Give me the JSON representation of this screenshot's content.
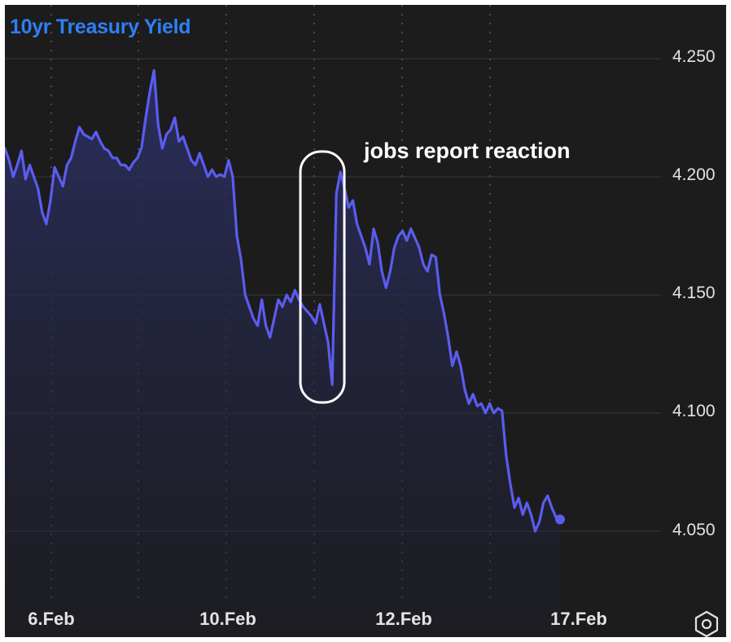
{
  "colors": {
    "background": "#1c1c1c",
    "line": "#5a5cf0",
    "title": "#2f7ff5",
    "grid": "#3a3a3a",
    "text": "#e3e3e3",
    "annotation": "#ffffff"
  },
  "settings": {
    "icon": "gear-hexagon-icon"
  },
  "chart_data": {
    "type": "area",
    "title": "10yr Treasury Yield",
    "xlabel": "",
    "ylabel": "",
    "x_ticks": [
      "6.Feb",
      "10.Feb",
      "12.Feb",
      "17.Feb"
    ],
    "y_ticks": [
      "4.250",
      "4.200",
      "4.150",
      "4.100",
      "4.050"
    ],
    "ylim": [
      4.02,
      4.26
    ],
    "grid": true,
    "series": [
      {
        "values": [
          4.212,
          4.207,
          4.2,
          4.205,
          4.211,
          4.199,
          4.205,
          4.2,
          4.195,
          4.185,
          4.18,
          4.19,
          4.204,
          4.2,
          4.196,
          4.205,
          4.208,
          4.215,
          4.221,
          4.218,
          4.217,
          4.216,
          4.219,
          4.215,
          4.212,
          4.211,
          4.208,
          4.208,
          4.205,
          4.205,
          4.203,
          4.206,
          4.208,
          4.2125,
          4.225,
          4.236,
          4.245,
          4.222,
          4.212,
          4.218,
          4.22,
          4.225,
          4.215,
          4.217,
          4.212,
          4.207,
          4.205,
          4.21,
          4.205,
          4.2,
          4.203,
          4.2,
          4.201,
          4.2,
          4.207,
          4.2,
          4.175,
          4.165,
          4.15,
          4.145,
          4.14,
          4.137,
          4.148,
          4.137,
          4.132,
          4.14,
          4.148,
          4.145,
          4.15,
          4.147,
          4.152,
          4.148,
          4.145,
          4.143,
          4.141,
          4.138,
          4.146,
          4.138,
          4.13,
          4.112,
          4.193,
          4.202,
          4.195,
          4.187,
          4.19,
          4.18,
          4.175,
          4.17,
          4.163,
          4.178,
          4.172,
          4.16,
          4.153,
          4.16,
          4.17,
          4.175,
          4.177,
          4.173,
          4.178,
          4.174,
          4.17,
          4.163,
          4.16,
          4.167,
          4.166,
          4.15,
          4.142,
          4.132,
          4.12,
          4.126,
          4.12,
          4.11,
          4.104,
          4.108,
          4.103,
          4.104,
          4.1,
          4.104,
          4.1,
          4.102,
          4.101,
          4.082,
          4.07,
          4.06,
          4.064,
          4.057,
          4.062,
          4.057,
          4.05,
          4.054,
          4.062,
          4.065,
          4.06,
          4.056,
          4.055
        ]
      }
    ]
  },
  "annotation": {
    "text": "jobs report reaction"
  }
}
